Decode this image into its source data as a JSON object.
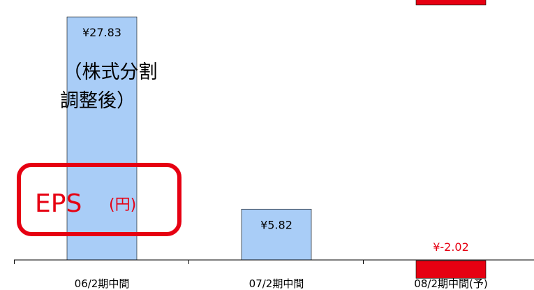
{
  "colors": {
    "positive_bar": "#a9cdf7",
    "negative_bar": "#e60012",
    "negative_text": "#e60012",
    "badge": "#e60012"
  },
  "annotation": {
    "line1": "（株式分割",
    "line2": "調整後）"
  },
  "badge": {
    "main": "EPS",
    "sub": "(円)"
  },
  "chart_data": {
    "type": "bar",
    "categories": [
      "06/2期中間",
      "07/2期中間",
      "08/2期中間(予)"
    ],
    "values": [
      27.83,
      5.82,
      -2.02
    ],
    "value_labels": [
      "¥27.83",
      "¥5.82",
      "¥-2.02"
    ],
    "ylim": [
      -3,
      42
    ],
    "grid": false,
    "title": "",
    "xlabel": "",
    "ylabel": ""
  }
}
